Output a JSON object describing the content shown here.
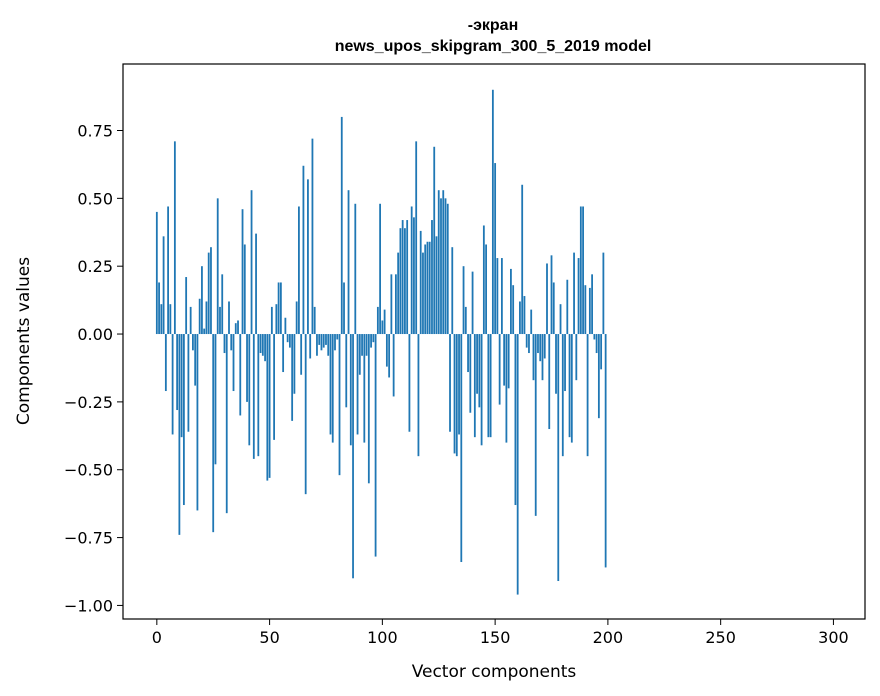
{
  "chart_data": {
    "type": "bar",
    "title_lines": [
      "-экран",
      "news_upos_skipgram_300_5_2019 model"
    ],
    "xlabel": "Vector components",
    "ylabel": "Components values",
    "xlim": [
      -15,
      314
    ],
    "ylim": [
      -1.05,
      0.995
    ],
    "xticks": [
      0,
      50,
      100,
      150,
      200,
      250,
      300
    ],
    "yticks": [
      -1.0,
      -0.75,
      -0.5,
      -0.25,
      0.0,
      0.25,
      0.5,
      0.75
    ],
    "ytick_labels": [
      "−1.00",
      "−0.75",
      "−0.50",
      "−0.25",
      "0.00",
      "0.25",
      "0.50",
      "0.75"
    ],
    "bar_color": "#1f77b4",
    "values": [
      0.45,
      0.19,
      0.11,
      0.36,
      -0.21,
      0.47,
      0.11,
      -0.37,
      0.71,
      -0.28,
      -0.74,
      -0.38,
      -0.63,
      0.21,
      -0.36,
      0.1,
      -0.06,
      -0.19,
      -0.65,
      0.13,
      0.25,
      0.02,
      0.12,
      0.3,
      0.32,
      -0.73,
      -0.48,
      0.5,
      0.1,
      0.22,
      -0.07,
      -0.66,
      0.12,
      -0.06,
      -0.21,
      0.04,
      0.05,
      -0.3,
      0.46,
      0.33,
      -0.25,
      -0.41,
      0.53,
      -0.46,
      0.37,
      -0.45,
      -0.07,
      -0.08,
      -0.1,
      -0.54,
      -0.53,
      0.1,
      -0.39,
      0.11,
      0.19,
      0.19,
      -0.14,
      0.06,
      -0.03,
      -0.05,
      -0.32,
      -0.22,
      0.12,
      0.47,
      -0.15,
      0.62,
      -0.59,
      0.57,
      -0.09,
      0.72,
      0.1,
      -0.08,
      -0.04,
      -0.06,
      -0.05,
      -0.04,
      -0.08,
      -0.37,
      -0.4,
      -0.06,
      -0.02,
      -0.52,
      0.8,
      0.19,
      -0.27,
      0.53,
      -0.41,
      -0.9,
      0.48,
      -0.37,
      -0.15,
      -0.08,
      -0.4,
      -0.08,
      -0.55,
      -0.05,
      -0.03,
      -0.82,
      0.1,
      0.48,
      0.05,
      0.09,
      -0.12,
      -0.16,
      0.22,
      -0.23,
      0.22,
      0.3,
      0.39,
      0.42,
      0.39,
      0.42,
      -0.36,
      0.47,
      0.43,
      0.71,
      -0.45,
      0.38,
      0.3,
      0.33,
      0.34,
      0.34,
      0.42,
      0.69,
      0.36,
      0.53,
      0.5,
      0.53,
      0.5,
      0.48,
      -0.36,
      0.32,
      -0.44,
      -0.45,
      -0.37,
      -0.84,
      0.25,
      0.1,
      -0.14,
      -0.29,
      0.23,
      -0.38,
      -0.22,
      -0.27,
      -0.41,
      0.4,
      0.33,
      -0.38,
      -0.38,
      0.9,
      0.63,
      0.28,
      -0.26,
      0.28,
      -0.19,
      -0.4,
      -0.2,
      0.24,
      0.18,
      -0.63,
      -0.96,
      0.12,
      0.55,
      0.14,
      -0.05,
      -0.07,
      0.09,
      -0.17,
      -0.67,
      -0.07,
      -0.1,
      -0.17,
      -0.09,
      0.26,
      -0.35,
      0.29,
      0.19,
      -0.22,
      -0.91,
      0.11,
      -0.45,
      -0.21,
      0.2,
      -0.38,
      -0.4,
      0.3,
      -0.17,
      0.28,
      0.47,
      0.47,
      0.18,
      -0.45,
      0.17,
      0.22,
      -0.02,
      -0.07,
      -0.31,
      -0.13,
      0.3,
      -0.86
    ]
  }
}
